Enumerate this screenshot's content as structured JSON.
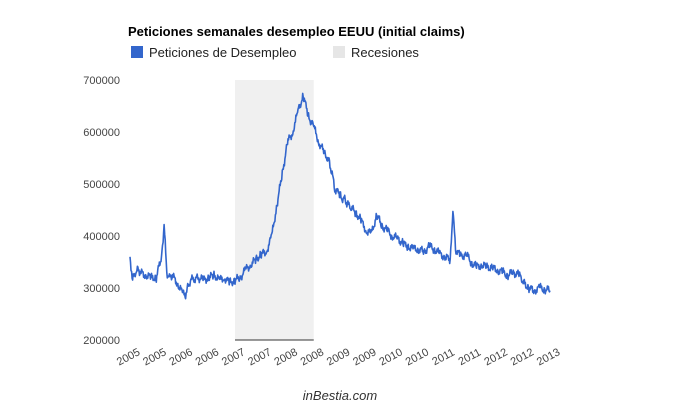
{
  "chart_data": {
    "type": "line",
    "title": "Peticiones semanales desempleo EEUU (initial claims)",
    "xlabel": "",
    "ylabel": "",
    "ylim": [
      200000,
      700000
    ],
    "yticks": [
      200000,
      300000,
      400000,
      500000,
      600000,
      700000
    ],
    "ytick_labels": [
      "200000",
      "300000",
      "400000",
      "500000",
      "600000",
      "700000"
    ],
    "xticks": [
      2005.0,
      2005.5,
      2006.0,
      2006.5,
      2007.0,
      2007.5,
      2008.0,
      2008.5,
      2009.0,
      2009.5,
      2010.0,
      2010.5,
      2011.0,
      2011.5,
      2012.0,
      2012.5,
      2013.0
    ],
    "xtick_labels": [
      "2005",
      "2005",
      "2006",
      "2006",
      "2007",
      "2007",
      "2008",
      "2008",
      "2009",
      "2009",
      "2010",
      "2010",
      "2011",
      "2011",
      "2012",
      "2012",
      "2013"
    ],
    "xlim": [
      2005.0,
      2013.0
    ],
    "grid": false,
    "legend_position": "top-left",
    "legend": [
      "Peticiones de Desempleo",
      "Recesiones"
    ],
    "series": [
      {
        "name": "Peticiones de Desempleo",
        "color": "#3366cc",
        "x": [
          2005.0,
          2005.05,
          2005.1,
          2005.15,
          2005.2,
          2005.3,
          2005.4,
          2005.5,
          2005.6,
          2005.65,
          2005.7,
          2005.75,
          2005.8,
          2005.9,
          2006.0,
          2006.05,
          2006.1,
          2006.15,
          2006.3,
          2006.4,
          2006.5,
          2006.6,
          2006.7,
          2006.8,
          2006.9,
          2007.0,
          2007.1,
          2007.2,
          2007.3,
          2007.4,
          2007.5,
          2007.6,
          2007.7,
          2007.8,
          2007.9,
          2008.0,
          2008.1,
          2008.2,
          2008.3,
          2008.4,
          2008.5,
          2008.6,
          2008.7,
          2008.75,
          2008.8,
          2008.85,
          2008.9,
          2009.0,
          2009.05,
          2009.1,
          2009.15,
          2009.2,
          2009.3,
          2009.4,
          2009.5,
          2009.6,
          2009.7,
          2009.8,
          2009.9,
          2010.0,
          2010.1,
          2010.2,
          2010.3,
          2010.4,
          2010.5,
          2010.6,
          2010.7,
          2010.8,
          2010.9,
          2011.0,
          2011.1,
          2011.15,
          2011.2,
          2011.3,
          2011.4,
          2011.5,
          2011.6,
          2011.7,
          2011.8,
          2011.9,
          2012.0,
          2012.1,
          2012.2,
          2012.3,
          2012.4,
          2012.45,
          2012.5,
          2012.6,
          2012.7,
          2012.8,
          2012.9,
          2013.0
        ],
        "values": [
          360000,
          315000,
          330000,
          335000,
          330000,
          325000,
          320000,
          320000,
          360000,
          420000,
          330000,
          320000,
          325000,
          310000,
          290000,
          285000,
          300000,
          315000,
          320000,
          315000,
          320000,
          325000,
          315000,
          320000,
          310000,
          315000,
          320000,
          335000,
          345000,
          355000,
          365000,
          370000,
          400000,
          460000,
          520000,
          580000,
          600000,
          640000,
          670000,
          630000,
          610000,
          580000,
          560000,
          550000,
          540000,
          520000,
          490000,
          480000,
          470000,
          470000,
          460000,
          455000,
          445000,
          430000,
          410000,
          405000,
          440000,
          420000,
          410000,
          400000,
          395000,
          385000,
          380000,
          375000,
          375000,
          370000,
          380000,
          375000,
          365000,
          360000,
          355000,
          450000,
          375000,
          360000,
          365000,
          350000,
          340000,
          345000,
          340000,
          338000,
          335000,
          330000,
          325000,
          330000,
          325000,
          320000,
          310000,
          300000,
          295000,
          300000,
          298000,
          295000
        ]
      }
    ],
    "recession_band": {
      "x_start": 2007.0,
      "x_end": 2008.5,
      "color": "#f0f0f0"
    }
  },
  "credit": "inBestia.com"
}
